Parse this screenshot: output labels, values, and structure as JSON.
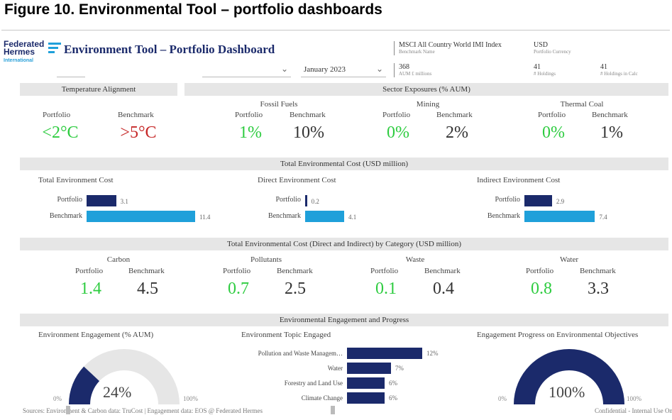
{
  "figure_title": "Figure 10. Environmental Tool – portfolio dashboards",
  "logo": {
    "line1": "Federated",
    "line2": "Hermes",
    "line3": "International"
  },
  "dashboard_title": "Environment Tool – Portfolio Dashboard",
  "filters": {
    "date": "January 2023"
  },
  "header_kpis": {
    "benchmark_value": "MSCI All Country World IMI Index",
    "benchmark_label": "Benchmark Name",
    "currency_value": "USD",
    "currency_label": "Portfolio Currency",
    "aum_value": "368",
    "aum_label": "AUM £ millions",
    "holdings_value": "41",
    "holdings_label": "# Holdings",
    "holdings_calc_value": "41",
    "holdings_calc_label": "# Holdings in Calc"
  },
  "temperature": {
    "title": "Temperature Alignment",
    "portfolio_label": "Portfolio",
    "benchmark_label": "Benchmark",
    "portfolio_value": "<2°C",
    "benchmark_value": ">5°C"
  },
  "sector": {
    "title": "Sector Exposures (% AUM)",
    "portfolio_label": "Portfolio",
    "benchmark_label": "Benchmark",
    "items": [
      {
        "name": "Fossil Fuels",
        "portfolio": "1%",
        "benchmark": "10%"
      },
      {
        "name": "Mining",
        "portfolio": "0%",
        "benchmark": "2%"
      },
      {
        "name": "Thermal Coal",
        "portfolio": "0%",
        "benchmark": "1%"
      }
    ]
  },
  "total_cost": {
    "title": "Total Environmental Cost (USD million)",
    "portfolio_label": "Portfolio",
    "benchmark_label": "Benchmark",
    "max": 11.4,
    "charts": [
      {
        "name": "Total Environment Cost",
        "portfolio": 3.1,
        "benchmark": 11.4,
        "portfolio_label": "3.1",
        "benchmark_label": "11.4"
      },
      {
        "name": "Direct Environment Cost",
        "portfolio": 0.2,
        "benchmark": 4.1,
        "portfolio_label": "0.2",
        "benchmark_label": "4.1"
      },
      {
        "name": "Indirect Environment Cost",
        "portfolio": 2.9,
        "benchmark": 7.4,
        "portfolio_label": "2.9",
        "benchmark_label": "7.4"
      }
    ]
  },
  "category": {
    "title": "Total Environmental Cost (Direct and Indirect) by Category (USD million)",
    "portfolio_label": "Portfolio",
    "benchmark_label": "Benchmark",
    "items": [
      {
        "name": "Carbon",
        "portfolio": "1.4",
        "benchmark": "4.5"
      },
      {
        "name": "Pollutants",
        "portfolio": "0.7",
        "benchmark": "2.5"
      },
      {
        "name": "Waste",
        "portfolio": "0.1",
        "benchmark": "0.4"
      },
      {
        "name": "Water",
        "portfolio": "0.8",
        "benchmark": "3.3"
      }
    ]
  },
  "engagement": {
    "title": "Environmental Engagement and Progress",
    "gauge1": {
      "title": "Environment Engagement (% AUM)",
      "value": 24,
      "value_label": "24%",
      "min_label": "0%",
      "max_label": "100%"
    },
    "topics": {
      "title": "Environment Topic Engaged",
      "max": 12,
      "items": [
        {
          "name": "Pollution and Waste Managem…",
          "value": 12,
          "label": "12%"
        },
        {
          "name": "Water",
          "value": 7,
          "label": "7%"
        },
        {
          "name": "Forestry and Land Use",
          "value": 6,
          "label": "6%"
        },
        {
          "name": "Climate Change",
          "value": 6,
          "label": "6%"
        }
      ]
    },
    "gauge2": {
      "title": "Engagement Progress on Environmental Objectives",
      "value": 100,
      "value_label": "100%",
      "min_label": "0%",
      "max_label": "100%"
    }
  },
  "footer": {
    "sources": "Sources:   Environment & Carbon data: TruCost | Engagement data: EOS @ Federated Hermes",
    "confidential": "Confidential - Internal Use Only"
  },
  "colors": {
    "navy": "#1b2a6b",
    "cyan": "#1fa0da",
    "green": "#2ecc40",
    "red": "#c62828",
    "band": "#e6e6e6"
  }
}
